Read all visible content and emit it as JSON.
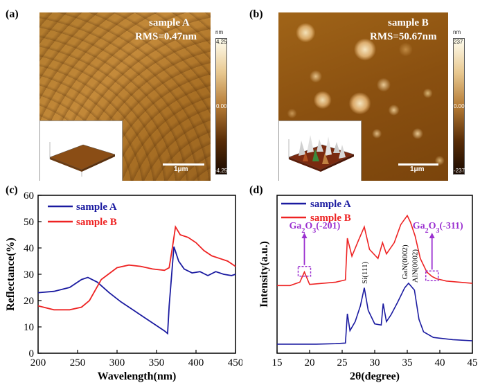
{
  "panels": {
    "a": {
      "label": "(a)",
      "sample": "sample A",
      "rms": "RMS=0.47nm",
      "colorbar": {
        "unit": "nm",
        "max": "4.25",
        "mid": "0.00",
        "min": "-4.25"
      },
      "scalebar": "1μm"
    },
    "b": {
      "label": "(b)",
      "sample": "sample B",
      "rms": "RMS=50.67nm",
      "colorbar": {
        "unit": "nm",
        "max": "237",
        "mid": "0.00",
        "min": "-237"
      },
      "scalebar": "1μm"
    },
    "c": {
      "label": "(c)"
    },
    "d": {
      "label": "(d)"
    }
  },
  "colors": {
    "sampleA": "#1a1aa0",
    "sampleB": "#ee2222",
    "annotation": "#9b30d0"
  },
  "chart_data": [
    {
      "type": "line",
      "panel": "c",
      "xlabel": "Wavelength(nm)",
      "ylabel": "Reflectance(%)",
      "xlim": [
        200,
        450
      ],
      "ylim": [
        0,
        60
      ],
      "xticks": [
        200,
        250,
        300,
        350,
        400,
        450
      ],
      "yticks": [
        0,
        10,
        20,
        30,
        40,
        50,
        60
      ],
      "legend": "top-left",
      "series": [
        {
          "name": "sample A",
          "x": [
            200,
            220,
            240,
            255,
            263,
            275,
            290,
            305,
            320,
            335,
            350,
            360,
            364,
            366,
            372,
            378,
            385,
            395,
            405,
            415,
            425,
            435,
            445,
            450
          ],
          "y": [
            23,
            23.5,
            25,
            28,
            28.8,
            27,
            23,
            19.5,
            16.5,
            13.5,
            10.5,
            8.5,
            7.5,
            18,
            40.5,
            35,
            32,
            30.5,
            31,
            29.5,
            31,
            30,
            29.5,
            30
          ]
        },
        {
          "name": "sample B",
          "x": [
            200,
            220,
            240,
            255,
            265,
            280,
            300,
            315,
            330,
            345,
            360,
            366,
            370,
            374,
            380,
            390,
            400,
            410,
            420,
            430,
            440,
            450
          ],
          "y": [
            18,
            16.5,
            16.5,
            17.5,
            20,
            28,
            32.5,
            33.5,
            33,
            32,
            31.5,
            32.5,
            40,
            48,
            45,
            44,
            42,
            39,
            37,
            36,
            35,
            33
          ]
        }
      ]
    },
    {
      "type": "line",
      "panel": "d",
      "xlabel": "2θ(degree)",
      "ylabel": "Intensity(a.u.)",
      "xlim": [
        15,
        45
      ],
      "xticks": [
        15,
        20,
        25,
        30,
        35,
        40,
        45
      ],
      "legend": "top-left",
      "annotations": [
        {
          "text": "Ga",
          "sub": "2",
          "text2": "O",
          "sub2": "3",
          "text3": "(-201)",
          "x": 19.2
        },
        {
          "text": "Ga",
          "sub": "2",
          "text2": "O",
          "sub2": "3",
          "text3": "(-311)",
          "x": 38.8
        },
        {
          "text": "Si(111)",
          "x": 28.4
        },
        {
          "text": "GaN(0002)",
          "x": 34.6
        },
        {
          "text": "AlN(0002)",
          "x": 36.1
        }
      ],
      "series": [
        {
          "name": "sample A",
          "x": [
            15,
            18,
            21,
            24,
            25.5,
            25.8,
            26.2,
            27,
            27.8,
            28.4,
            29,
            30,
            31,
            31.3,
            31.8,
            32.5,
            33.5,
            34.6,
            35.2,
            36.1,
            36.8,
            37.5,
            39,
            42,
            45
          ],
          "y": [
            0.8,
            0.8,
            0.8,
            0.85,
            0.9,
            3.5,
            2,
            2.8,
            4.2,
            5.8,
            3.8,
            2.6,
            2.5,
            4.4,
            2.8,
            3.4,
            4.5,
            5.8,
            6.2,
            5.6,
            3.0,
            1.9,
            1.4,
            1.2,
            1.1
          ]
        },
        {
          "name": "sample B",
          "x": [
            15,
            17,
            18.5,
            19.2,
            20,
            22,
            24,
            25.5,
            25.8,
            26.5,
            27.5,
            28.4,
            29.2,
            30.5,
            31.2,
            31.8,
            33,
            34,
            35,
            35.5,
            36.2,
            37,
            38,
            38.8,
            39.5,
            41,
            45
          ],
          "y": [
            6.0,
            6.0,
            6.3,
            7.2,
            6.1,
            6.2,
            6.3,
            6.5,
            10.2,
            8.6,
            10.0,
            11.2,
            9.2,
            8.4,
            9.8,
            8.8,
            9.8,
            11.4,
            12.2,
            11.6,
            10.4,
            8.4,
            7.2,
            6.8,
            6.6,
            6.4,
            6.2
          ]
        }
      ]
    }
  ]
}
